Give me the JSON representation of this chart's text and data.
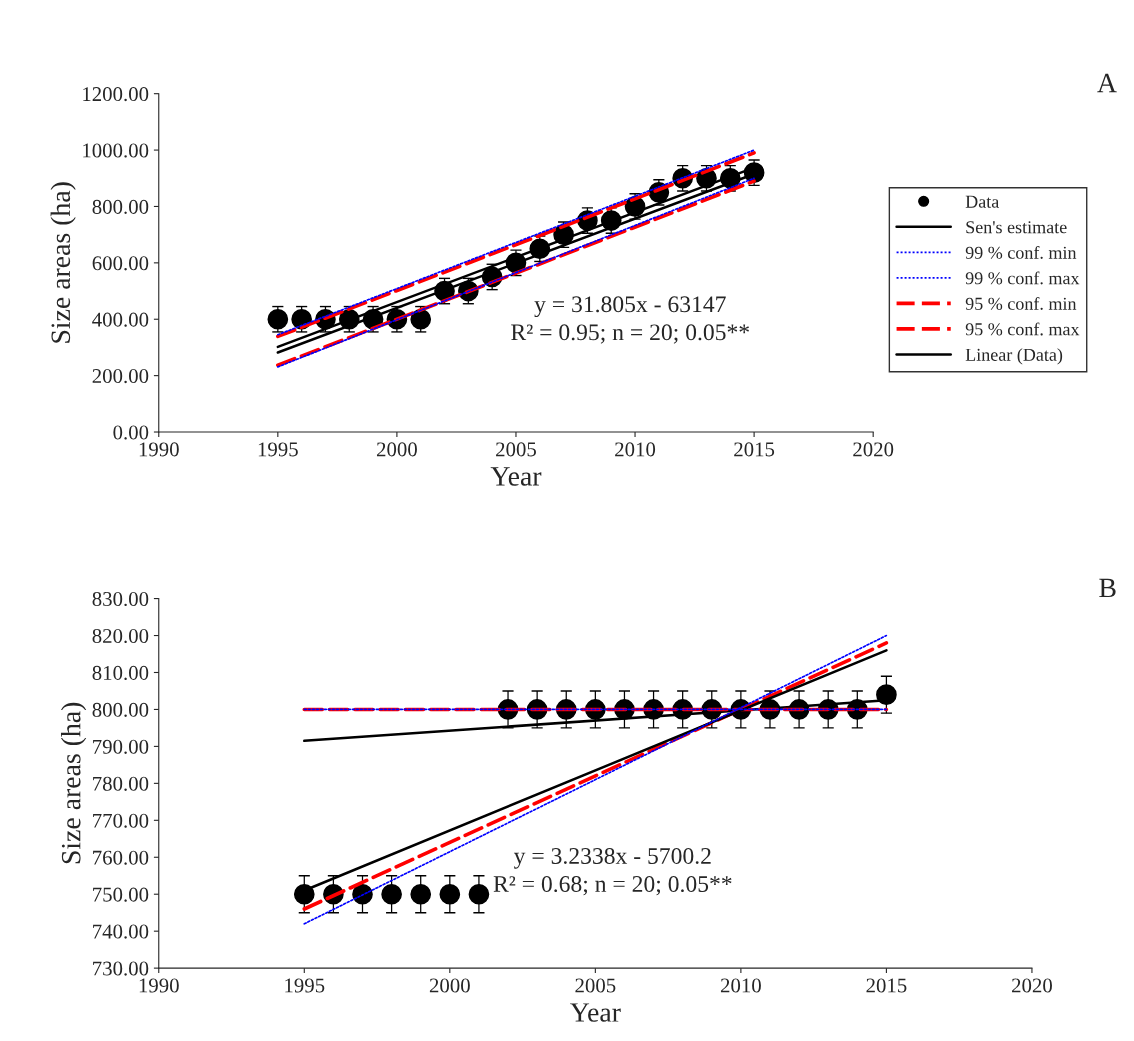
{
  "chart_data": [
    {
      "type": "scatter",
      "xlabel": "Year",
      "ylabel": "Size areas (ha)",
      "annotations": [
        "A",
        "y = 31.805x - 63147\nR² = 0.95; n = 20; 0.05**"
      ],
      "xlim": [
        1990,
        2020
      ],
      "xticks": [
        1990,
        1995,
        2000,
        2005,
        2010,
        2015,
        2020
      ],
      "ylim": [
        0,
        1200
      ],
      "yticks": [
        {
          "value": 0,
          "label": "0.00"
        },
        {
          "value": 200,
          "label": "200.00"
        },
        {
          "value": 400,
          "label": "400.00"
        },
        {
          "value": 600,
          "label": "600.00"
        },
        {
          "value": 800,
          "label": "800.00"
        },
        {
          "value": 1000,
          "label": "1000.00"
        },
        {
          "value": 1200,
          "label": "1200.00"
        }
      ],
      "legend": "right",
      "grid": false,
      "series": [
        {
          "name": "Data",
          "type": "scatter",
          "marker": "circle",
          "color": "#000000",
          "x": [
            1995,
            1996,
            1997,
            1998,
            1999,
            2000,
            2001,
            2002,
            2003,
            2004,
            2005,
            2006,
            2007,
            2008,
            2009,
            2010,
            2011,
            2012,
            2013,
            2014,
            2015
          ],
          "values": [
            400,
            400,
            400,
            400,
            400,
            400,
            400,
            500,
            500,
            550,
            600,
            650,
            700,
            750,
            750,
            800,
            850,
            900,
            900,
            900,
            920
          ],
          "errors": [
            45,
            45,
            45,
            45,
            45,
            45,
            45,
            45,
            45,
            45,
            45,
            45,
            45,
            45,
            45,
            45,
            45,
            45,
            45,
            45,
            45
          ]
        },
        {
          "name": "Sen's estimate",
          "type": "line",
          "line_style": "solid",
          "color": "#000000",
          "x": [
            1995,
            2015
          ],
          "values": [
            282,
            915
          ]
        },
        {
          "name": "99 % conf. min",
          "type": "line",
          "line_style": "dotted",
          "color": "#0000ff",
          "x": [
            1995,
            2015
          ],
          "values": [
            231,
            900
          ]
        },
        {
          "name": "99 % conf. max",
          "type": "line",
          "line_style": "dotted",
          "color": "#0000ff",
          "x": [
            1995,
            2015
          ],
          "values": [
            345,
            1000
          ]
        },
        {
          "name": "95 % conf. min",
          "type": "line",
          "line_style": "dashed",
          "color": "#ff0000",
          "x": [
            1995,
            2015
          ],
          "values": [
            237,
            890
          ]
        },
        {
          "name": "95 % conf. max",
          "type": "line",
          "line_style": "dashed",
          "color": "#ff0000",
          "x": [
            1995,
            2015
          ],
          "values": [
            339,
            990
          ]
        },
        {
          "name": "Linear (Data)",
          "type": "line",
          "line_style": "solid",
          "color": "#000000",
          "x": [
            1995,
            2015
          ],
          "values": [
            302,
            938
          ]
        }
      ]
    },
    {
      "type": "scatter",
      "xlabel": "Year",
      "ylabel": "Size areas (ha)",
      "annotations": [
        "B",
        "y = 3.2338x - 5700.2\nR² = 0.68; n = 20; 0.05**"
      ],
      "xlim": [
        1990,
        2020
      ],
      "xticks": [
        1990,
        1995,
        2000,
        2005,
        2010,
        2015,
        2020
      ],
      "ylim": [
        730,
        830
      ],
      "yticks": [
        {
          "value": 730,
          "label": "730.00"
        },
        {
          "value": 740,
          "label": "740.00"
        },
        {
          "value": 750,
          "label": "750.00"
        },
        {
          "value": 760,
          "label": "760.00"
        },
        {
          "value": 770,
          "label": "770.00"
        },
        {
          "value": 780,
          "label": "780.00"
        },
        {
          "value": 790,
          "label": "790.00"
        },
        {
          "value": 800,
          "label": "800.00"
        },
        {
          "value": 810,
          "label": "810.00"
        },
        {
          "value": 820,
          "label": "820.00"
        },
        {
          "value": 830,
          "label": "830.00"
        }
      ],
      "grid": false,
      "series": [
        {
          "type": "scatter",
          "marker": "circle",
          "color": "#000000",
          "x": [
            1995,
            1996,
            1997,
            1998,
            1999,
            2000,
            2001,
            2002,
            2003,
            2004,
            2005,
            2006,
            2007,
            2008,
            2009,
            2010,
            2011,
            2012,
            2013,
            2014,
            2015
          ],
          "values": [
            750,
            750,
            750,
            750,
            750,
            750,
            750,
            800,
            800,
            800,
            800,
            800,
            800,
            800,
            800,
            800,
            800,
            800,
            800,
            800,
            804
          ],
          "errors": [
            5,
            5,
            5,
            5,
            5,
            5,
            5,
            5,
            5,
            5,
            5,
            5,
            5,
            5,
            5,
            5,
            5,
            5,
            5,
            5,
            5
          ]
        },
        {
          "type": "line",
          "line_style": "solid",
          "color": "#000000",
          "x": [
            1995,
            2015
          ],
          "values": [
            791.5,
            802.5
          ]
        },
        {
          "type": "line",
          "line_style": "dotted",
          "color": "#0000ff",
          "x": [
            1995,
            2015
          ],
          "values": [
            800,
            800
          ]
        },
        {
          "type": "line",
          "line_style": "dotted",
          "color": "#0000ff",
          "x": [
            1995,
            2015
          ],
          "values": [
            742,
            820
          ]
        },
        {
          "type": "line",
          "line_style": "dashed",
          "color": "#ff0000",
          "x": [
            1995,
            2015
          ],
          "values": [
            800,
            800
          ]
        },
        {
          "type": "line",
          "line_style": "dashed",
          "color": "#ff0000",
          "x": [
            1995,
            2015
          ],
          "values": [
            746,
            818
          ]
        },
        {
          "type": "line",
          "line_style": "solid",
          "color": "#000000",
          "x": [
            1995,
            2015
          ],
          "values": [
            751,
            816
          ]
        }
      ]
    }
  ]
}
